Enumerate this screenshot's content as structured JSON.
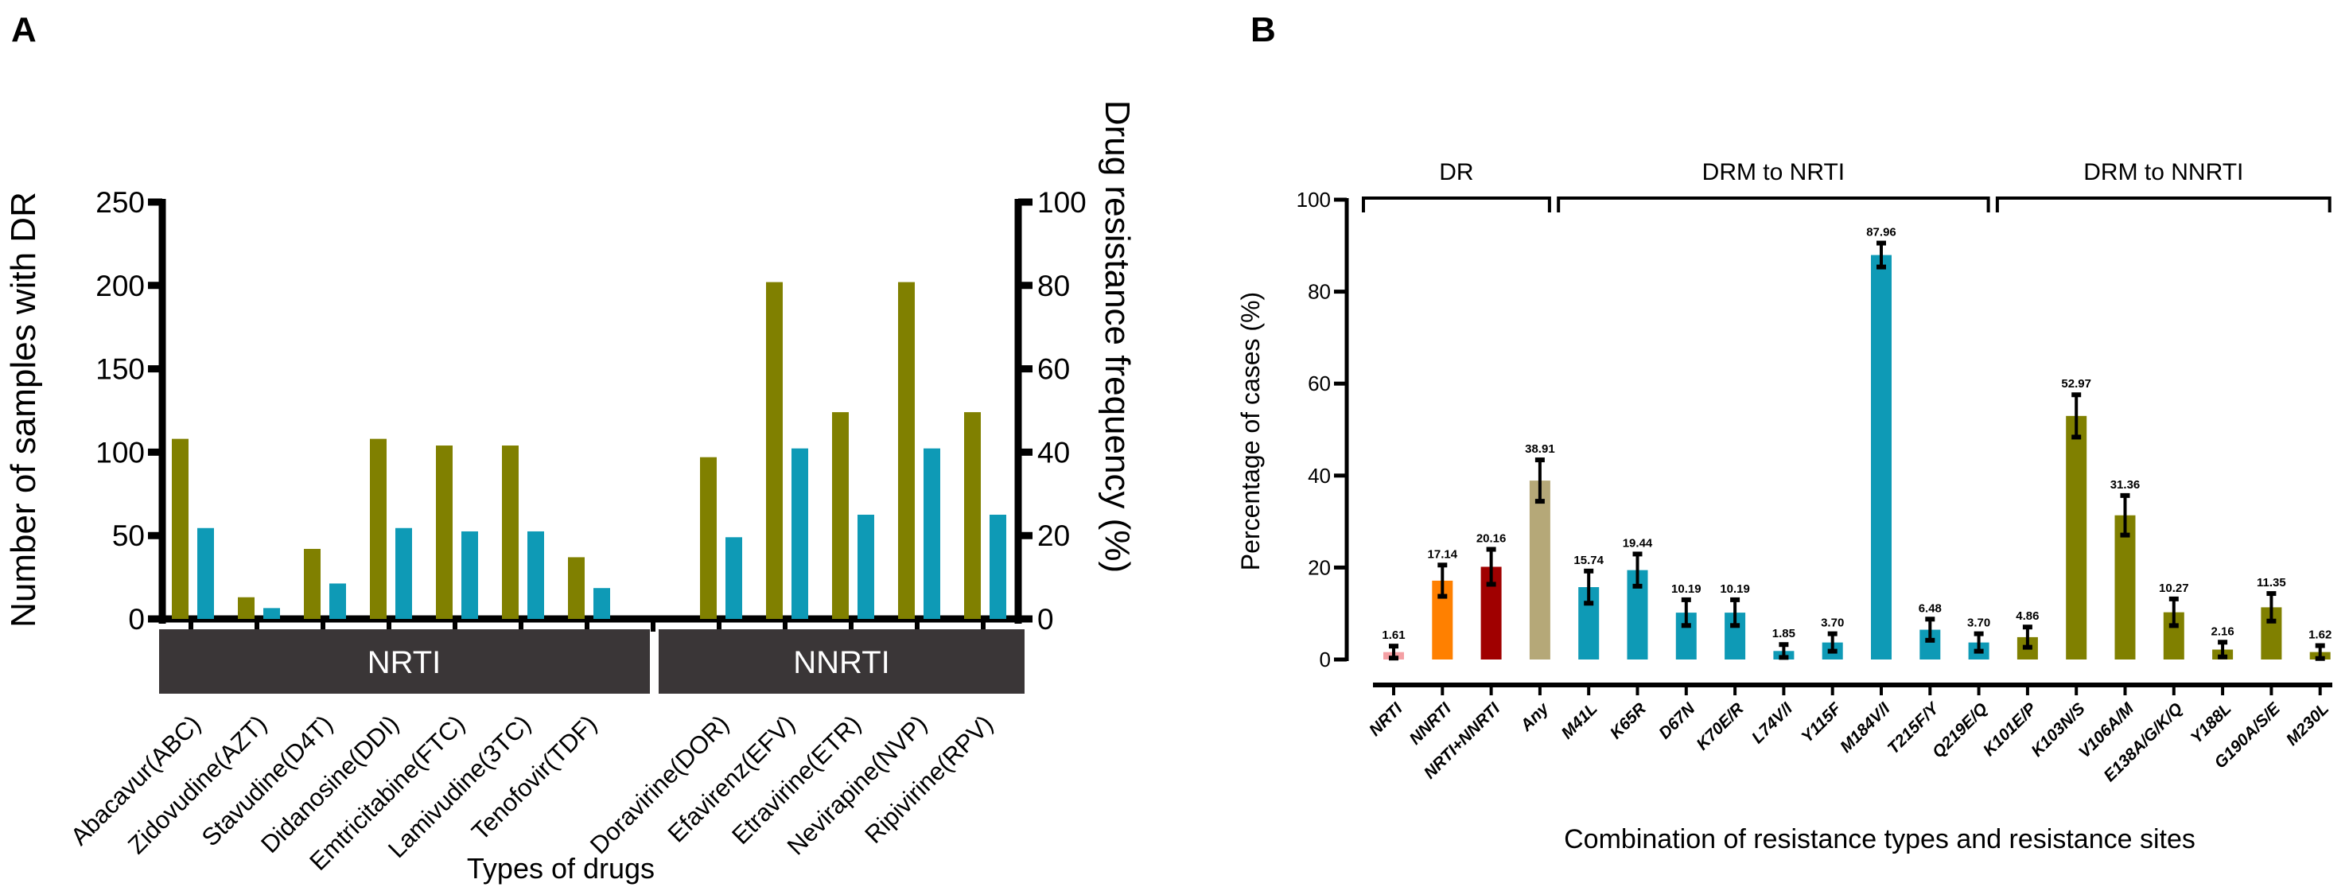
{
  "colors": {
    "olive": "#808000",
    "teal": "#0e9ab6",
    "category_box": "#3a3637",
    "nrti_pink": "#f4a0a4",
    "nnrti_orange": "#ff8000",
    "both_red": "#a00000",
    "any_tan": "#b5a878"
  },
  "chart_data": [
    {
      "panel_label": "A",
      "type": "bar",
      "xlabel": "Types of drugs",
      "ylabel_left": "Number of samples with DR",
      "ylabel_right": "Drug resistance frequency (%)",
      "ylim_left": [
        0,
        250
      ],
      "ylim_right": [
        0,
        100
      ],
      "yticks_left": [
        "0",
        "50",
        "100",
        "150",
        "200",
        "250"
      ],
      "yticks_right": [
        "0",
        "20",
        "40",
        "60",
        "80",
        "100"
      ],
      "groups": [
        {
          "label": "NRTI",
          "categories": [
            "Abacavur(ABC)",
            "Zidovudine(AZT)",
            "Stavudine(D4T)",
            "Didanosine(DDI)",
            "Emtricitabine(FTC)",
            "Lamivudine(3TC)",
            "Tenofovir(TDF)"
          ]
        },
        {
          "label": "NNRTI",
          "categories": [
            "Doravirine(DOR)",
            "Efavirenz(EFV)",
            "Etravirine(ETR)",
            "Nevirapine(NVP)",
            "Ripivirine(RPV)"
          ]
        }
      ],
      "series": [
        {
          "name": "Number of samples with DR",
          "axis": "left",
          "values": [
            108,
            13,
            42,
            108,
            104,
            104,
            37,
            97,
            202,
            124,
            202,
            124
          ]
        },
        {
          "name": "Drug resistance frequency (%)",
          "axis": "right",
          "values": [
            21.8,
            2.6,
            8.5,
            21.8,
            21.0,
            21.0,
            7.4,
            19.6,
            40.9,
            25.0,
            40.9,
            25.0
          ]
        }
      ],
      "grid": false
    },
    {
      "panel_label": "B",
      "type": "bar",
      "xlabel": "Combination of resistance types and resistance sites",
      "ylabel": "Percentage of cases (%)",
      "ylim": [
        0,
        100
      ],
      "yticks": [
        "0",
        "20",
        "40",
        "60",
        "80",
        "100"
      ],
      "brackets": [
        {
          "label": "DR",
          "from": 0,
          "to": 3
        },
        {
          "label": "DRM to NRTI",
          "from": 4,
          "to": 12
        },
        {
          "label": "DRM to NNRTI",
          "from": 13,
          "to": 19
        }
      ],
      "categories": [
        "NRTI",
        "NNRTI",
        "NRTI+NNRTI",
        "Any",
        "M41L",
        "K65R",
        "D67N",
        "K70E/R",
        "L74V/I",
        "Y115F",
        "M184V/I",
        "T215F/Y",
        "Q219E/Q",
        "K101E/P",
        "K103N/S",
        "V106A/M",
        "E138A/G/K/Q",
        "Y188L",
        "G190A/S/E",
        "M230L"
      ],
      "values": [
        1.61,
        17.14,
        20.16,
        38.91,
        15.74,
        19.44,
        10.19,
        10.19,
        1.85,
        3.7,
        87.96,
        6.48,
        3.7,
        4.86,
        52.97,
        31.36,
        10.27,
        2.16,
        11.35,
        1.62
      ],
      "value_labels": [
        "1.61",
        "17.14",
        "20.16",
        "38.91",
        "15.74",
        "19.44",
        "10.19",
        "10.19",
        "1.85",
        "3.70",
        "87.96",
        "6.48",
        "3.70",
        "4.86",
        "52.97",
        "31.36",
        "10.27",
        "2.16",
        "11.35",
        "1.62"
      ],
      "errors": [
        1.3,
        3.4,
        3.8,
        4.5,
        3.5,
        3.5,
        2.8,
        2.8,
        1.4,
        1.9,
        2.6,
        2.3,
        1.9,
        2.2,
        4.6,
        4.3,
        2.9,
        1.6,
        3.0,
        1.4
      ],
      "bar_colors": [
        "nrti_pink",
        "nnrti_orange",
        "both_red",
        "any_tan",
        "teal",
        "teal",
        "teal",
        "teal",
        "teal",
        "teal",
        "teal",
        "teal",
        "teal",
        "olive",
        "olive",
        "olive",
        "olive",
        "olive",
        "olive",
        "olive"
      ],
      "grid": false
    }
  ]
}
